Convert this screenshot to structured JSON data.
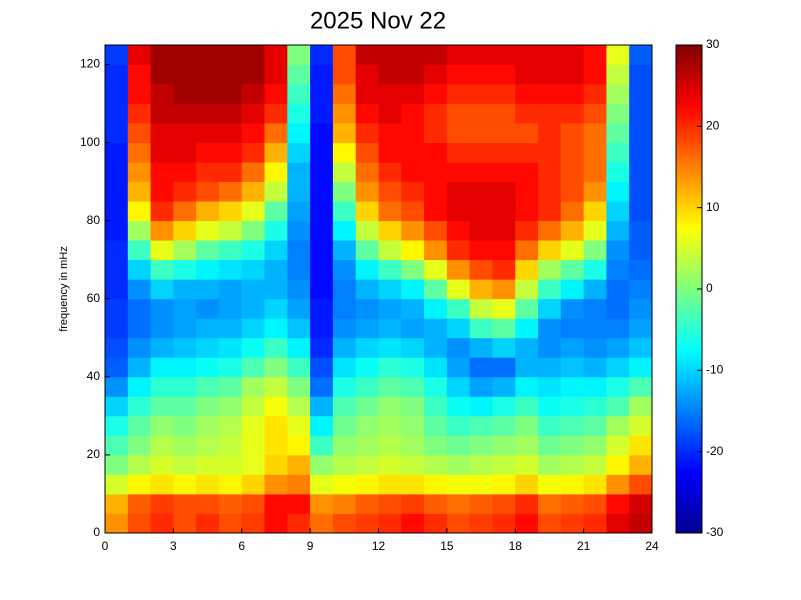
{
  "chart_data": {
    "type": "heatmap",
    "title": "2025 Nov 22",
    "ylabel": "frequency in mHz",
    "xbins": [
      0,
      1,
      2,
      3,
      4,
      5,
      6,
      7,
      8,
      9,
      10,
      11,
      12,
      13,
      14,
      15,
      16,
      17,
      18,
      19,
      20,
      21,
      22,
      23,
      24
    ],
    "ybins": [
      0,
      5,
      10,
      15,
      20,
      25,
      30,
      35,
      40,
      45,
      50,
      55,
      60,
      65,
      70,
      75,
      80,
      85,
      90,
      95,
      100,
      105,
      110,
      115,
      120,
      125
    ],
    "values": [
      [
        14,
        18,
        20,
        18,
        20,
        18,
        19,
        22,
        20,
        16,
        18,
        19,
        20,
        22,
        20,
        18,
        19,
        20,
        22,
        18,
        19,
        20,
        24,
        26
      ],
      [
        12,
        17,
        19,
        18,
        18,
        17,
        18,
        22,
        22,
        14,
        15,
        17,
        18,
        19,
        17,
        16,
        17,
        18,
        20,
        16,
        17,
        18,
        22,
        25
      ],
      [
        5,
        8,
        9,
        8,
        9,
        8,
        10,
        14,
        15,
        6,
        7,
        8,
        9,
        9,
        8,
        7,
        7,
        8,
        10,
        7,
        8,
        9,
        14,
        18
      ],
      [
        0,
        3,
        5,
        4,
        5,
        5,
        6,
        10,
        12,
        1,
        3,
        4,
        5,
        4,
        3,
        2,
        3,
        4,
        5,
        2,
        3,
        4,
        8,
        12
      ],
      [
        -3,
        0,
        3,
        2,
        3,
        4,
        6,
        9,
        8,
        -4,
        1,
        2,
        3,
        2,
        0,
        -1,
        0,
        1,
        2,
        -1,
        0,
        1,
        5,
        9
      ],
      [
        -6,
        -2,
        1,
        0,
        2,
        3,
        6,
        9,
        6,
        -8,
        -1,
        1,
        2,
        1,
        -2,
        -4,
        -3,
        -2,
        0,
        -4,
        -3,
        -2,
        2,
        5
      ],
      [
        -10,
        -5,
        -2,
        -2,
        0,
        1,
        4,
        7,
        3,
        -12,
        -3,
        -1,
        1,
        0,
        -4,
        -7,
        -8,
        -6,
        -4,
        -7,
        -6,
        -5,
        -3,
        2
      ],
      [
        -14,
        -8,
        -5,
        -5,
        -3,
        -2,
        2,
        4,
        0,
        -16,
        -6,
        -4,
        -2,
        -3,
        -6,
        -10,
        -13,
        -12,
        -8,
        -9,
        -8,
        -8,
        -6,
        -3
      ],
      [
        -17,
        -12,
        -8,
        -8,
        -7,
        -6,
        -3,
        0,
        -4,
        -18,
        -9,
        -7,
        -5,
        -6,
        -9,
        -13,
        -16,
        -16,
        -12,
        -12,
        -11,
        -12,
        -10,
        -8
      ],
      [
        -18,
        -14,
        -12,
        -11,
        -10,
        -9,
        -7,
        -4,
        -8,
        -20,
        -12,
        -10,
        -9,
        -10,
        -12,
        -14,
        -12,
        -10,
        -12,
        -14,
        -13,
        -14,
        -13,
        -11
      ],
      [
        -19,
        -16,
        -14,
        -13,
        -12,
        -12,
        -10,
        -8,
        -11,
        -21,
        -14,
        -13,
        -12,
        -13,
        -12,
        -10,
        -4,
        -2,
        -8,
        -14,
        -15,
        -15,
        -15,
        -13
      ],
      [
        -19,
        -16,
        -14,
        -13,
        -14,
        -13,
        -12,
        -10,
        -13,
        -21,
        -15,
        -14,
        -13,
        -12,
        -8,
        -4,
        4,
        6,
        -2,
        -10,
        -14,
        -15,
        -16,
        -14
      ],
      [
        -20,
        -14,
        -10,
        -12,
        -12,
        -13,
        -12,
        -12,
        -14,
        -22,
        -15,
        -12,
        -10,
        -8,
        -2,
        6,
        12,
        14,
        4,
        -4,
        -8,
        -12,
        -16,
        -15
      ],
      [
        -20,
        -10,
        -4,
        -6,
        -8,
        -9,
        -10,
        -12,
        -15,
        -22,
        -14,
        -8,
        -4,
        0,
        6,
        14,
        18,
        20,
        10,
        2,
        -2,
        -6,
        -15,
        -16
      ],
      [
        -20,
        -4,
        6,
        2,
        -2,
        -4,
        -6,
        -10,
        -15,
        -22,
        -12,
        -2,
        4,
        8,
        14,
        20,
        22,
        22,
        16,
        10,
        6,
        0,
        -14,
        -17
      ],
      [
        -21,
        2,
        14,
        10,
        6,
        4,
        0,
        -6,
        -14,
        -22,
        -8,
        4,
        10,
        14,
        18,
        22,
        24,
        24,
        20,
        16,
        12,
        6,
        -12,
        -17
      ],
      [
        -21,
        8,
        20,
        16,
        12,
        10,
        6,
        -2,
        -13,
        -22,
        -4,
        10,
        16,
        18,
        22,
        24,
        24,
        24,
        22,
        20,
        16,
        10,
        -10,
        -18
      ],
      [
        -21,
        12,
        22,
        20,
        18,
        16,
        12,
        4,
        -12,
        -22,
        0,
        14,
        18,
        20,
        22,
        24,
        24,
        24,
        22,
        20,
        18,
        14,
        -8,
        -18
      ],
      [
        -21,
        14,
        22,
        22,
        20,
        20,
        16,
        8,
        -12,
        -22,
        4,
        16,
        20,
        22,
        22,
        22,
        22,
        22,
        22,
        20,
        18,
        16,
        -6,
        -18
      ],
      [
        -21,
        16,
        24,
        24,
        22,
        22,
        20,
        12,
        -10,
        -22,
        8,
        18,
        22,
        22,
        22,
        20,
        20,
        20,
        20,
        20,
        18,
        16,
        -4,
        -18
      ],
      [
        -20,
        18,
        24,
        24,
        24,
        24,
        22,
        16,
        -8,
        -22,
        12,
        20,
        22,
        22,
        20,
        18,
        18,
        18,
        18,
        20,
        18,
        16,
        -2,
        -18
      ],
      [
        -20,
        20,
        26,
        26,
        26,
        26,
        24,
        20,
        -6,
        -21,
        14,
        22,
        24,
        22,
        20,
        18,
        18,
        18,
        20,
        20,
        20,
        18,
        0,
        -18
      ],
      [
        -20,
        22,
        26,
        28,
        28,
        28,
        26,
        22,
        -4,
        -21,
        16,
        24,
        24,
        24,
        22,
        20,
        20,
        20,
        22,
        22,
        22,
        20,
        2,
        -18
      ],
      [
        -20,
        22,
        28,
        28,
        28,
        28,
        28,
        24,
        -2,
        -21,
        18,
        24,
        26,
        26,
        24,
        22,
        22,
        22,
        24,
        24,
        24,
        22,
        4,
        -18
      ],
      [
        -19,
        24,
        28,
        28,
        28,
        28,
        28,
        24,
        0,
        -20,
        18,
        26,
        26,
        26,
        26,
        24,
        24,
        24,
        24,
        24,
        24,
        22,
        6,
        -17
      ]
    ],
    "xlim": [
      0,
      24
    ],
    "xticks": [
      0,
      3,
      6,
      9,
      12,
      15,
      18,
      21,
      24
    ],
    "ylim": [
      0,
      125
    ],
    "yticks": [
      0,
      20,
      40,
      60,
      80,
      100,
      120
    ],
    "colormap": "jet",
    "clim": [
      -30,
      30
    ],
    "cticks": [
      -30,
      -20,
      -10,
      0,
      10,
      20,
      30
    ]
  }
}
